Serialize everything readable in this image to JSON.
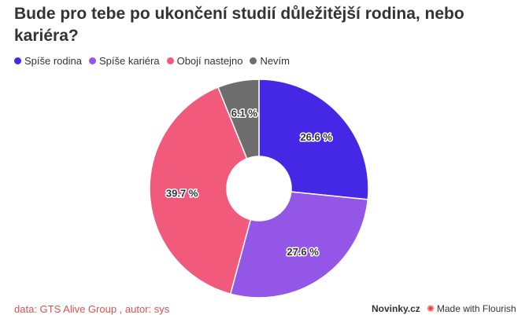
{
  "header": {
    "title": "Bude pro tebe po ukončení studií důležitější rodina, nebo kariéra?"
  },
  "footer": {
    "source": "data: GTS Alive Group , autor: sys",
    "brand": "Novinky.cz",
    "made_with": "Made with Flourish",
    "flourish_icon": "flourish-logo-icon"
  },
  "chart_data": {
    "type": "pie",
    "donut": true,
    "legend_position": "top-left",
    "categories": [
      "Spíše rodina",
      "Spíše kariéra",
      "Obojí nastejno",
      "Nevím"
    ],
    "values": [
      26.6,
      27.6,
      39.7,
      6.1
    ],
    "labels": [
      "26.6 %",
      "27.6 %",
      "39.7 %",
      "6.1 %"
    ],
    "colors": [
      "#4428e6",
      "#9456e6",
      "#f15a7b",
      "#6e6e6e"
    ]
  }
}
